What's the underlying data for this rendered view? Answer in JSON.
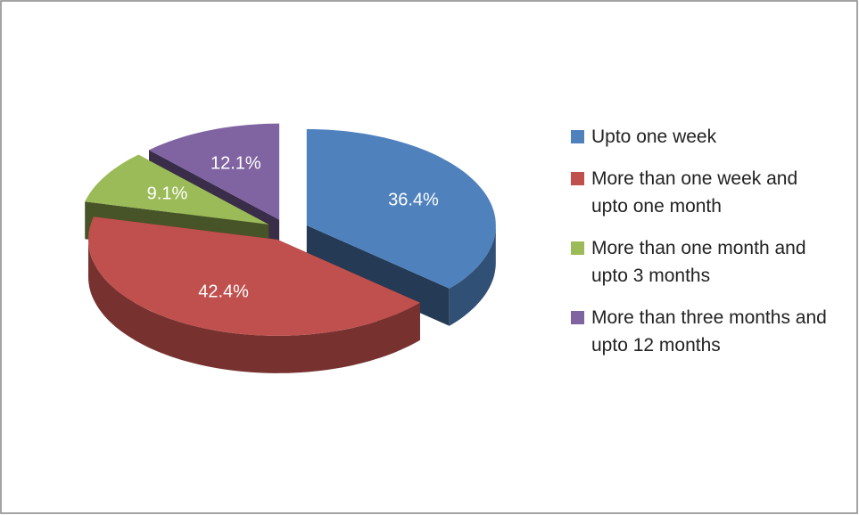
{
  "chart_data": {
    "type": "pie3d",
    "categories": [
      "Upto one week",
      "More than one week and upto one month",
      "More than one month and upto 3 months",
      "More than three months and upto 12 months"
    ],
    "values": [
      36.4,
      42.4,
      9.1,
      12.1
    ],
    "value_labels": [
      "36.4%",
      "42.4%",
      "9.1%",
      "12.1%"
    ],
    "colors": [
      "#4f81bd",
      "#c0504d",
      "#9bbb59",
      "#8064a2"
    ],
    "legend": "right"
  }
}
